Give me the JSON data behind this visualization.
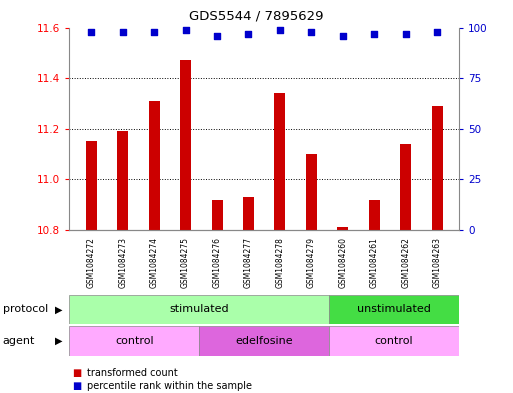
{
  "title": "GDS5544 / 7895629",
  "samples": [
    "GSM1084272",
    "GSM1084273",
    "GSM1084274",
    "GSM1084275",
    "GSM1084276",
    "GSM1084277",
    "GSM1084278",
    "GSM1084279",
    "GSM1084260",
    "GSM1084261",
    "GSM1084262",
    "GSM1084263"
  ],
  "bar_values": [
    11.15,
    11.19,
    11.31,
    11.47,
    10.92,
    10.93,
    11.34,
    11.1,
    10.81,
    10.92,
    11.14,
    11.29
  ],
  "percentile_values": [
    98,
    98,
    98,
    99,
    96,
    97,
    99,
    98,
    96,
    97,
    97,
    98
  ],
  "bar_color": "#cc0000",
  "dot_color": "#0000cc",
  "ylim_left": [
    10.8,
    11.6
  ],
  "ylim_right": [
    0,
    100
  ],
  "yticks_left": [
    10.8,
    11.0,
    11.2,
    11.4,
    11.6
  ],
  "yticks_right": [
    0,
    25,
    50,
    75,
    100
  ],
  "protocol_groups": [
    {
      "label": "stimulated",
      "start": 0,
      "end": 8,
      "color": "#aaffaa"
    },
    {
      "label": "unstimulated",
      "start": 8,
      "end": 12,
      "color": "#44dd44"
    }
  ],
  "agent_groups": [
    {
      "label": "control",
      "start": 0,
      "end": 4,
      "color": "#ffaaff"
    },
    {
      "label": "edelfosine",
      "start": 4,
      "end": 8,
      "color": "#dd66dd"
    },
    {
      "label": "control",
      "start": 8,
      "end": 12,
      "color": "#ffaaff"
    }
  ],
  "legend_items": [
    {
      "label": "transformed count",
      "color": "#cc0000"
    },
    {
      "label": "percentile rank within the sample",
      "color": "#0000cc"
    }
  ],
  "background_color": "#ffffff",
  "label_protocol": "protocol",
  "label_agent": "agent",
  "xlabel_color": "#000000",
  "xtick_bg": "#cccccc",
  "border_color": "#888888"
}
